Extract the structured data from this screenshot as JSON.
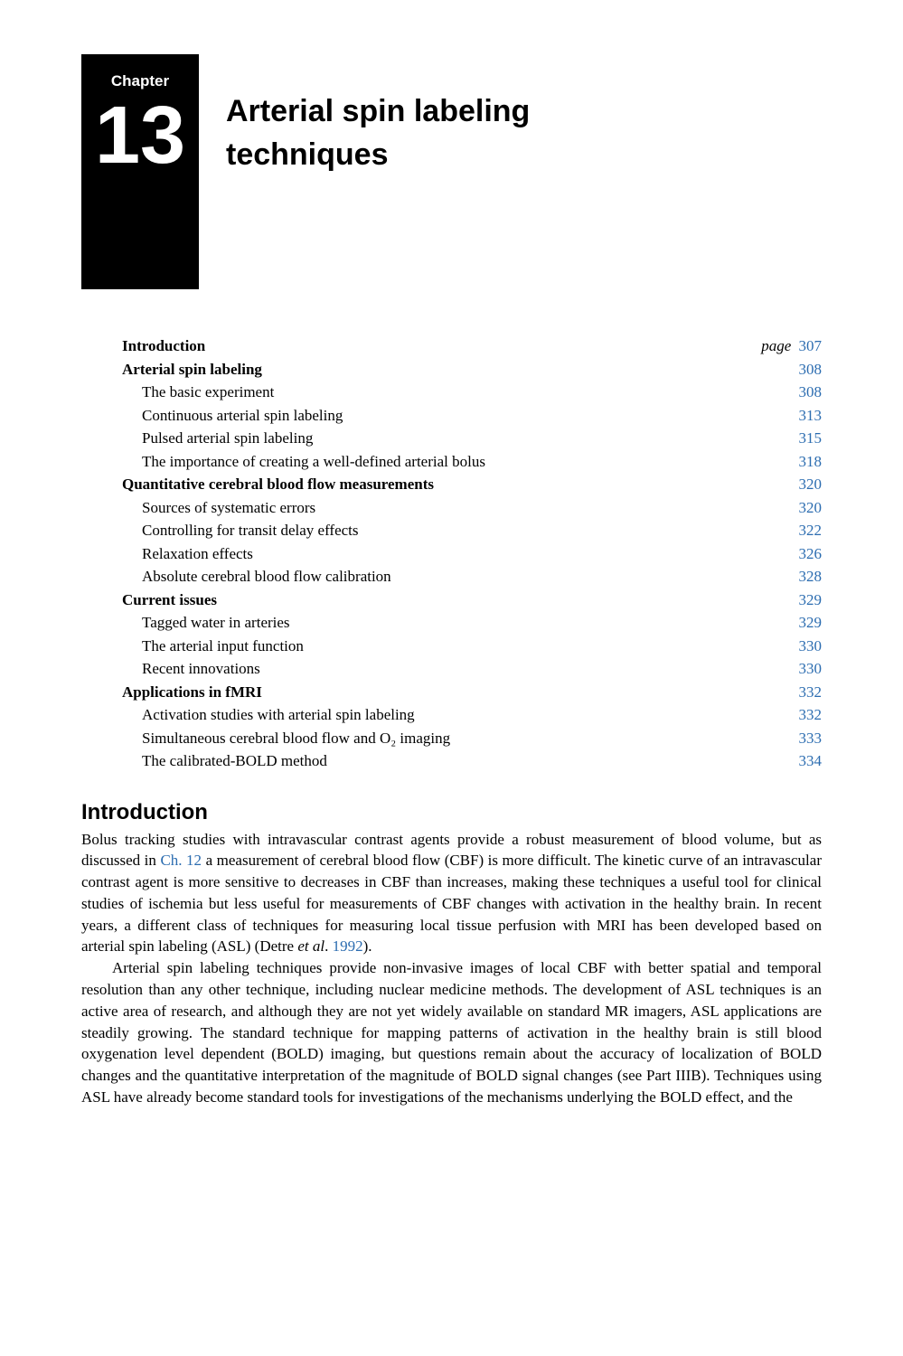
{
  "chapter": {
    "label": "Chapter",
    "number": "13",
    "title_line1": "Arterial spin labeling",
    "title_line2": "techniques"
  },
  "toc": {
    "page_label": "page",
    "entries": [
      {
        "title": "Introduction",
        "page": "307",
        "level": "section"
      },
      {
        "title": "Arterial spin labeling",
        "page": "308",
        "level": "section"
      },
      {
        "title": "The basic experiment",
        "page": "308",
        "level": "sub"
      },
      {
        "title": "Continuous arterial spin labeling",
        "page": "313",
        "level": "sub"
      },
      {
        "title": "Pulsed arterial spin labeling",
        "page": "315",
        "level": "sub"
      },
      {
        "title": "The importance of creating a well-defined arterial bolus",
        "page": "318",
        "level": "sub"
      },
      {
        "title": "Quantitative cerebral blood flow measurements",
        "page": "320",
        "level": "section"
      },
      {
        "title": "Sources of systematic errors",
        "page": "320",
        "level": "sub"
      },
      {
        "title": "Controlling for transit delay effects",
        "page": "322",
        "level": "sub"
      },
      {
        "title": "Relaxation effects",
        "page": "326",
        "level": "sub"
      },
      {
        "title": "Absolute cerebral blood flow calibration",
        "page": "328",
        "level": "sub"
      },
      {
        "title": "Current issues",
        "page": "329",
        "level": "section"
      },
      {
        "title": "Tagged water in arteries",
        "page": "329",
        "level": "sub"
      },
      {
        "title": "The arterial input function",
        "page": "330",
        "level": "sub"
      },
      {
        "title": "Recent innovations",
        "page": "330",
        "level": "sub"
      },
      {
        "title": "Applications in fMRI",
        "page": "332",
        "level": "section"
      },
      {
        "title": "Activation studies with arterial spin labeling",
        "page": "332",
        "level": "sub"
      },
      {
        "title": "Simultaneous cerebral blood flow and O₂ imaging",
        "page": "333",
        "level": "sub"
      },
      {
        "title": "The calibrated-BOLD method",
        "page": "334",
        "level": "sub"
      }
    ]
  },
  "introduction": {
    "heading": "Introduction",
    "para1_a": "Bolus tracking studies with intravascular contrast agents provide a robust measurement of blood volume, but as discussed in ",
    "para1_link1": "Ch. 12",
    "para1_b": " a measurement of cerebral blood flow (CBF) is more difficult. The kinetic curve of an intravascular contrast agent is more sensitive to decreases in CBF than increases, making these techniques a useful tool for clinical studies of ischemia but less useful for measurements of CBF changes with activation in the healthy brain. In recent years, a different class of techniques for measuring local tissue perfusion with MRI has been developed based on arterial spin labeling (ASL) (Detre ",
    "para1_etal": "et al",
    "para1_c": ". ",
    "para1_link2": "1992",
    "para1_d": ").",
    "para2": "Arterial spin labeling techniques provide non-invasive images of local CBF with better spatial and temporal resolution than any other technique, including nuclear medicine methods. The development of ASL techniques is an active area of research, and although they are not yet widely available on standard MR imagers, ASL applications are steadily growing. The standard technique for mapping patterns of activation in the healthy brain is still blood oxygenation level dependent (BOLD) imaging, but questions remain about the accuracy of localization of BOLD changes and the quantitative interpretation of the magnitude of BOLD signal changes (see Part IIIB). Techniques using ASL have already become standard tools for investigations of the mechanisms underlying the BOLD effect, and the"
  },
  "colors": {
    "link": "#2b6cb0",
    "text": "#000000",
    "bg": "#ffffff"
  }
}
